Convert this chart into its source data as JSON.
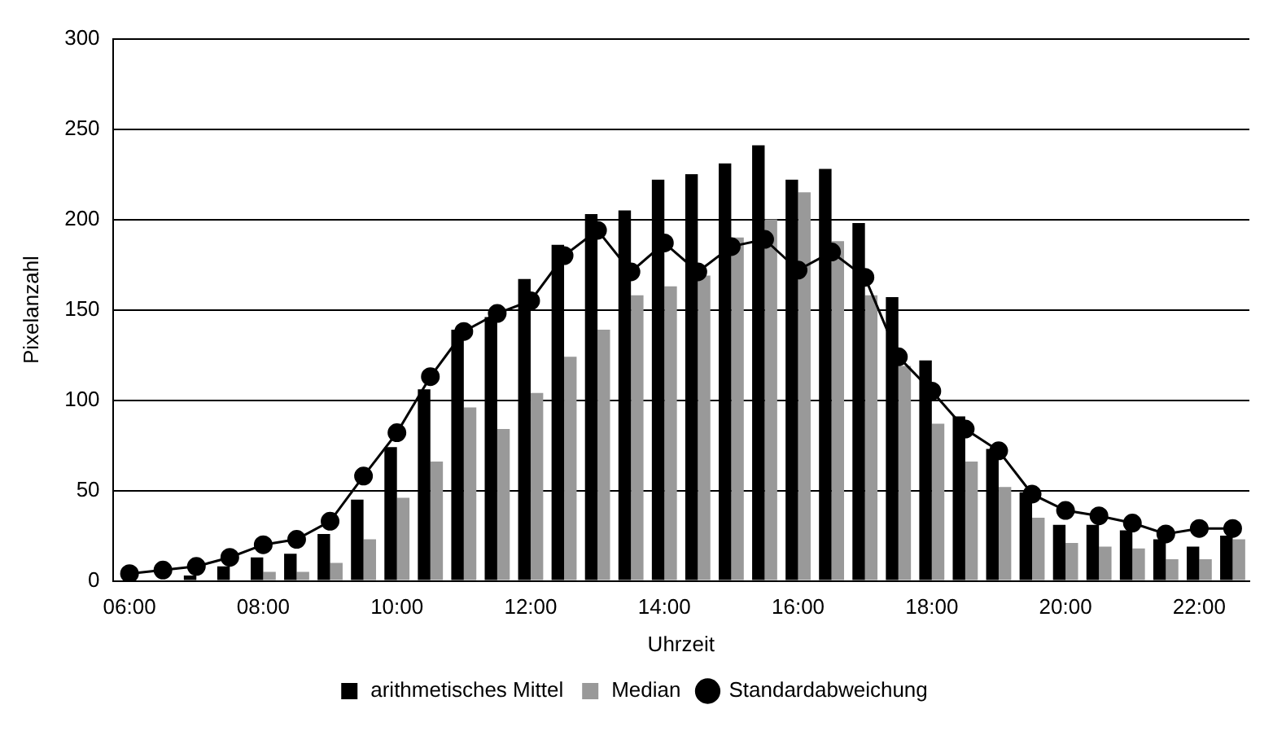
{
  "chart_data": {
    "type": "bar",
    "xlabel": "Uhrzeit",
    "ylabel": "Pixelanzahl",
    "categories": [
      "06:00",
      null,
      null,
      null,
      "08:00",
      null,
      null,
      null,
      "10:00",
      null,
      null,
      null,
      "12:00",
      null,
      null,
      null,
      "14:00",
      null,
      null,
      null,
      "16:00",
      null,
      null,
      null,
      "18:00",
      null,
      null,
      null,
      "20:00",
      null,
      null,
      null,
      "22:00",
      null
    ],
    "series": [
      {
        "name": "arithmetisches Mittel",
        "color": "#000000",
        "values": [
          0,
          0,
          3,
          8,
          13,
          15,
          26,
          45,
          74,
          106,
          139,
          146,
          167,
          186,
          203,
          205,
          222,
          225,
          231,
          241,
          222,
          228,
          198,
          157,
          122,
          91,
          73,
          49,
          31,
          31,
          28,
          23,
          19,
          25
        ]
      },
      {
        "name": "Median",
        "color": "#999999",
        "values": [
          0,
          0,
          0,
          0,
          5,
          5,
          10,
          23,
          46,
          66,
          96,
          84,
          104,
          124,
          139,
          158,
          163,
          169,
          190,
          200,
          215,
          188,
          158,
          119,
          87,
          66,
          52,
          35,
          21,
          19,
          18,
          12,
          12,
          23
        ]
      },
      {
        "name": "Standardabweichung",
        "type": "line",
        "color": "#000000",
        "marker": "circle",
        "values": [
          4,
          6,
          8,
          13,
          20,
          23,
          33,
          58,
          82,
          113,
          138,
          148,
          155,
          180,
          194,
          171,
          187,
          171,
          185,
          189,
          172,
          182,
          168,
          124,
          105,
          84,
          72,
          48,
          39,
          36,
          32,
          26,
          29,
          29
        ]
      }
    ],
    "ylim": [
      0,
      300
    ],
    "yticks": [
      0,
      50,
      100,
      150,
      200,
      250,
      300
    ],
    "grid": "y",
    "legend": "bottom"
  }
}
